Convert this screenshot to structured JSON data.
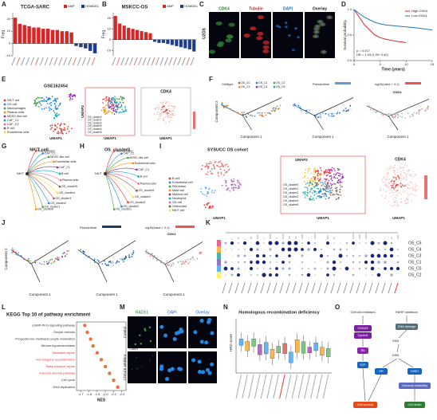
{
  "letters": [
    "A",
    "B",
    "C",
    "D",
    "E",
    "F",
    "G",
    "H",
    "I",
    "J",
    "K",
    "L",
    "M",
    "N",
    "O"
  ],
  "chart_data": [
    {
      "type": "bar",
      "title": "TCGA-SARC",
      "ylabel": "Freq",
      "ylim": [
        -10,
        25
      ],
      "yticks": [
        -10,
        0,
        10,
        20
      ],
      "series": [
        {
          "name": "AMP",
          "color": "#d62728",
          "values": [
            21,
            16,
            15,
            14,
            13,
            13,
            12,
            12,
            11,
            11,
            10,
            10,
            9,
            null,
            null,
            null,
            null,
            null
          ]
        },
        {
          "name": "HOMDEL",
          "color": "#1f3c88",
          "values": [
            null,
            null,
            null,
            null,
            null,
            null,
            null,
            null,
            null,
            null,
            null,
            null,
            null,
            -2,
            -3,
            -4,
            -6,
            -8
          ]
        }
      ]
    },
    {
      "type": "bar",
      "title": "MSKCC-OS",
      "ylabel": "Freq",
      "ylim": [
        -15,
        25
      ],
      "yticks": [
        -10,
        0,
        10,
        20
      ],
      "series": [
        {
          "name": "AMP",
          "color": "#d62728",
          "values": [
            22,
            15,
            13,
            11,
            10,
            9,
            8,
            7,
            6,
            null,
            null,
            null,
            null,
            null,
            null,
            null,
            null,
            null,
            null
          ]
        },
        {
          "name": "HOMDEL",
          "color": "#1f3c88",
          "values": [
            null,
            null,
            null,
            null,
            null,
            null,
            null,
            null,
            null,
            -2,
            -3,
            -3,
            -4,
            -5,
            -6,
            -7,
            -8,
            -9,
            -11
          ]
        }
      ]
    },
    {
      "type": "line",
      "ylabel": "Survival probability",
      "xlabel": "Time (years)",
      "x": [
        0,
        1,
        2,
        3,
        4,
        5,
        6,
        8,
        10,
        12,
        15
      ],
      "xlim": [
        0,
        15
      ],
      "xticks": [
        0,
        5,
        10,
        15
      ],
      "ylim": [
        0,
        1
      ],
      "yticks": [
        {
          "value": 0,
          "label": "0.0"
        },
        {
          "value": 0.5,
          "label": "0.5"
        },
        {
          "value": 1,
          "label": "1.0"
        }
      ],
      "series": [
        {
          "name": "High-CDK4",
          "color": "#d62728",
          "values": [
            1,
            0.85,
            0.7,
            0.6,
            0.5,
            0.45,
            0.42,
            0.38,
            0.35,
            null,
            null
          ]
        },
        {
          "name": "Low-CDK4",
          "color": "#1f77b4",
          "values": [
            1,
            0.92,
            0.85,
            0.8,
            0.75,
            0.72,
            0.7,
            0.68,
            0.66,
            0.64,
            0.6
          ]
        }
      ],
      "annotations": [
        "p = 0.017",
        "HR = 1.93 (1.09~3.40)"
      ]
    },
    {
      "type": "dot",
      "title": "KEGG Top 10 of pathway enrichment",
      "xlabel": "NES",
      "categories": [
        "cGMP-PKG signaling pathway",
        "Oocyte meiosis",
        "Progesterone-mediated oocyte maturation",
        "African trypanosomiasis",
        "Mismatch repair",
        "Homologous recombination",
        "Base excision repair",
        "Fanconi anemia pathway",
        "Cell cycle",
        "DNA replication"
      ],
      "values": [
        -1.75,
        -1.78,
        -1.82,
        -1.85,
        -1.9,
        -1.95,
        -2.0,
        -2.05,
        -2.1,
        -2.15
      ],
      "color": "#e8743b",
      "label_colors": [
        "#333333",
        "#333333",
        "#333333",
        "#333333",
        "#e53935",
        "#e53935",
        "#e53935",
        "#e53935",
        "#333333",
        "#333333"
      ],
      "xlim": [
        -1.65,
        -2.25
      ],
      "xticks": [
        -1.7,
        -1.8,
        -1.9,
        {
          "value": -2,
          "label": "-2.0"
        },
        -2.1,
        -2.2
      ],
      "legend_titles": [
        "p.adjust",
        "Count"
      ]
    }
  ],
  "panels": {
    "C": {
      "channels": [
        "CDK4",
        "Tubulin",
        "DAPI",
        "Overlay"
      ],
      "row": "U2OS"
    },
    "E": {
      "title": "GSE162454",
      "legend": [
        "NK/T cell",
        "OS cell",
        "Macrophages",
        "Plasma cells",
        "MDSC-like cell",
        "CAF_C1",
        "CAF_C2",
        "B cell",
        "Endothelial cells"
      ],
      "clusters": [
        "OS_cluster0",
        "OS_cluster1",
        "OS_cluster2",
        "OS_cluster3",
        "OS_cluster4",
        "OS_cluster5"
      ],
      "gene": "CDK4",
      "xlabel": "UMAP1",
      "ylabel": "UMAP2"
    },
    "F": {
      "celltype": "Celltype",
      "states": [
        "OS_C0",
        "OS_C1",
        "OS_C2",
        "OS_C3",
        "OS_C4",
        "OS_C5"
      ],
      "pseudotime": "Pseudotime",
      "expr": "log10(value + 0.1)",
      "gene": "CDK4",
      "xlabel": "Component 1",
      "ylabel": "Component 2"
    },
    "G": {
      "title": "NK/T cell",
      "targets": [
        "Macrophages",
        "CAF_C2",
        "MDSC-like cell",
        "Endothelial cells",
        "CAF_C1",
        "B cell",
        "Plasma cells",
        "OS_cluster5",
        "OS_cluster4",
        "OS_cluster3",
        "OS_cluster2",
        "OS_cluster1",
        "OS_cluster0"
      ],
      "source": "NK/T"
    },
    "H": {
      "title": "OS_cluster0",
      "targets": [
        "Macrophages",
        "CAF_C2",
        "MDSC-like cell",
        "Endothelial cells",
        "CAF_C1",
        "B cell",
        "Plasma cells",
        "OS_cluster5",
        "OS_cluster4",
        "OS_cluster3",
        "OS_cluster2",
        "OS_cluster1"
      ],
      "source": "NK/T"
    },
    "I": {
      "title": "SYSUCC OS cohort",
      "legend": [
        "B cell",
        "Endothelial cell",
        "Fibroblast",
        "Mast cell",
        "Myeloid cell",
        "Neutrophil",
        "OS cell",
        "Osteoclast",
        "NK/T cell"
      ],
      "clusters": [
        "OS_cluster0",
        "OS_cluster1",
        "OS_cluster2",
        "OS_cluster3",
        "OS_cluster4",
        "OS_cluster5"
      ],
      "gene": "CDK4",
      "xlabel": "UMAP1",
      "ylabel": "UMAP2"
    },
    "J": {
      "pseudotime": "Pseudotime",
      "expr": "log10(value + 0.1)",
      "gene": "CDK4",
      "xlabel": "Component 1",
      "ylabel": "Component 2"
    },
    "K": {
      "rows": [
        "OS_C5",
        "OS_C4",
        "OS_C3",
        "OS_C1",
        "OS_C0",
        "OS_C2"
      ]
    },
    "M": {
      "channels": [
        "RAD51",
        "DAPI",
        "Overlay"
      ],
      "rows": [
        "Control",
        "CDK4/6 inhibitor"
      ]
    },
    "N": {
      "title": "Homologous recombination deficiency",
      "ylabel": "HRD score"
    },
    "O": {
      "drugs": [
        "CDK4/6 inhibitors",
        "PARP inhibitors"
      ],
      "nodes": [
        "CDK4/6",
        "CyclinD",
        "Rb",
        "E2F",
        "DNA damage",
        "SSB",
        "DSB",
        "HR",
        "NHEJ",
        "Genomic instability",
        "Cell survival",
        "Cell death"
      ]
    }
  }
}
